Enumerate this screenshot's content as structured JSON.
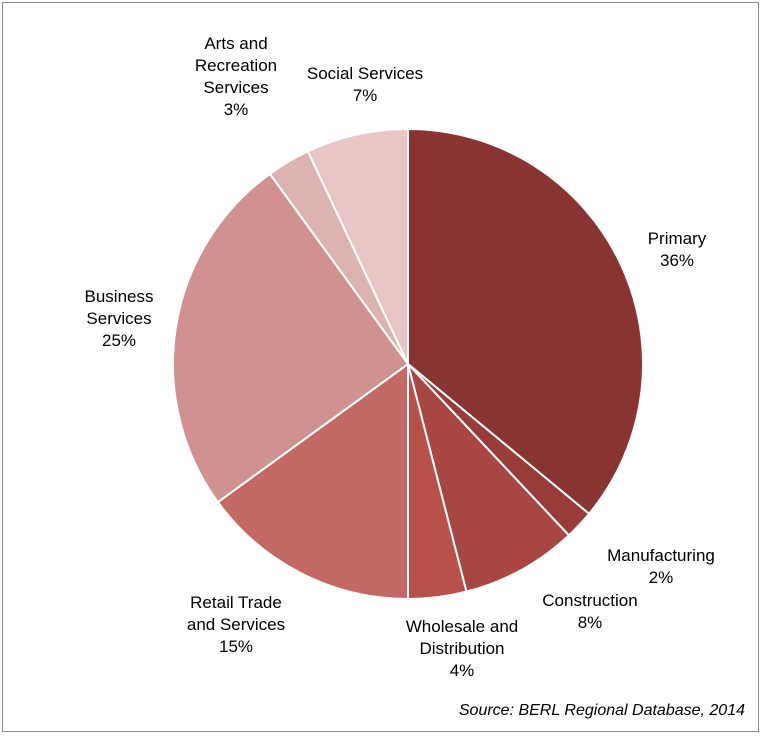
{
  "chart_data": {
    "type": "pie",
    "title": "",
    "start_angle_deg": 0,
    "direction": "clockwise",
    "slices": [
      {
        "label_lines": [
          "Primary"
        ],
        "percent_label": "36%",
        "value": 36,
        "color": "#873432"
      },
      {
        "label_lines": [
          "Manufacturing"
        ],
        "percent_label": "2%",
        "value": 2,
        "color": "#993b39"
      },
      {
        "label_lines": [
          "Construction"
        ],
        "percent_label": "8%",
        "value": 8,
        "color": "#a84643"
      },
      {
        "label_lines": [
          "Wholesale and",
          "Distribution"
        ],
        "percent_label": "4%",
        "value": 4,
        "color": "#b9514b"
      },
      {
        "label_lines": [
          "Retail Trade",
          "and Services"
        ],
        "percent_label": "15%",
        "value": 15,
        "color": "#c26966"
      },
      {
        "label_lines": [
          "Business",
          "Services"
        ],
        "percent_label": "25%",
        "value": 25,
        "color": "#cf9290"
      },
      {
        "label_lines": [
          "Arts and",
          "Recreation",
          "Services"
        ],
        "percent_label": "3%",
        "value": 3,
        "color": "#ddb3b1"
      },
      {
        "label_lines": [
          "Social Services"
        ],
        "percent_label": "7%",
        "value": 7,
        "color": "#e7c6c5"
      }
    ]
  },
  "source": "Source: BERL Regional Database, 2014"
}
